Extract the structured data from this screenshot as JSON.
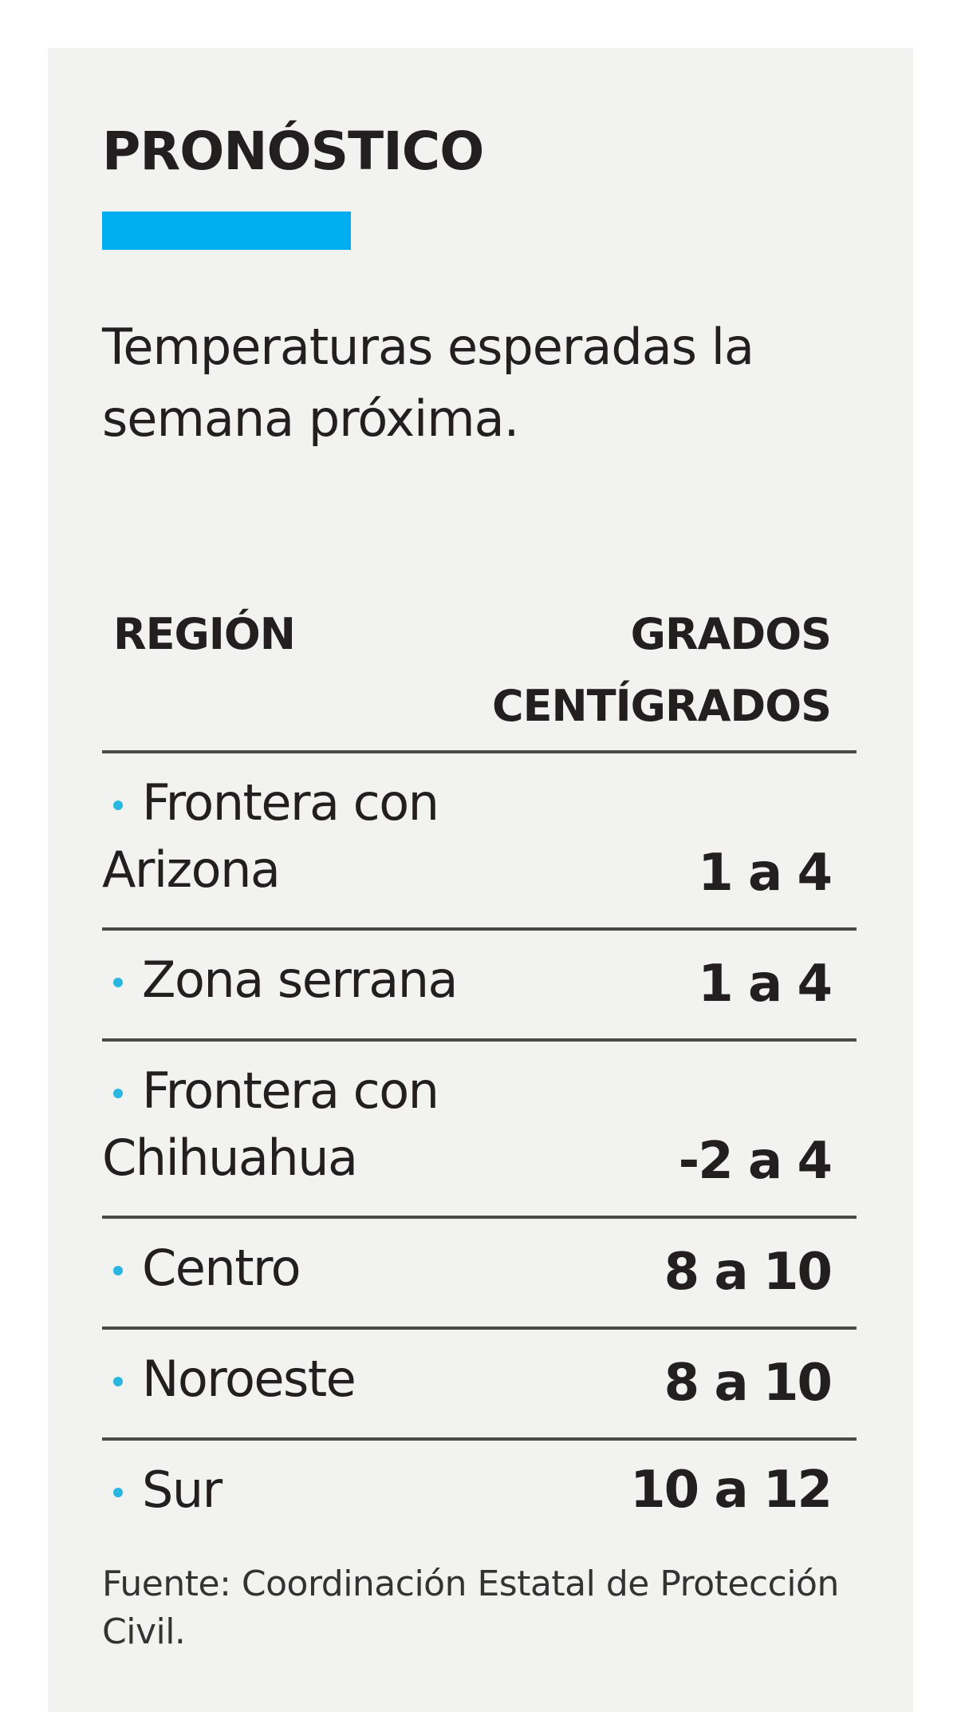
{
  "header": {
    "title": "PRONÓSTICO",
    "subtitle": "Temperaturas esperadas la semana próxima.",
    "accent_color": "#00aeef"
  },
  "table": {
    "columns": {
      "region": "REGIÓN",
      "degrees": "GRADOS CENTÍGRADOS"
    },
    "rows": [
      {
        "region": "Frontera con Arizona",
        "range": "1 a 4"
      },
      {
        "region": "Zona serrana",
        "range": "1 a 4"
      },
      {
        "region": "Frontera con Chihuahua",
        "range": "-2 a 4"
      },
      {
        "region": "Centro",
        "range": "8 a 10"
      },
      {
        "region": "Noroeste",
        "range": "8 a 10"
      },
      {
        "region": "Sur",
        "range": "10 a 12"
      }
    ]
  },
  "footer": {
    "source": "Fuente: Coordinación Estatal de Protección Civil."
  }
}
